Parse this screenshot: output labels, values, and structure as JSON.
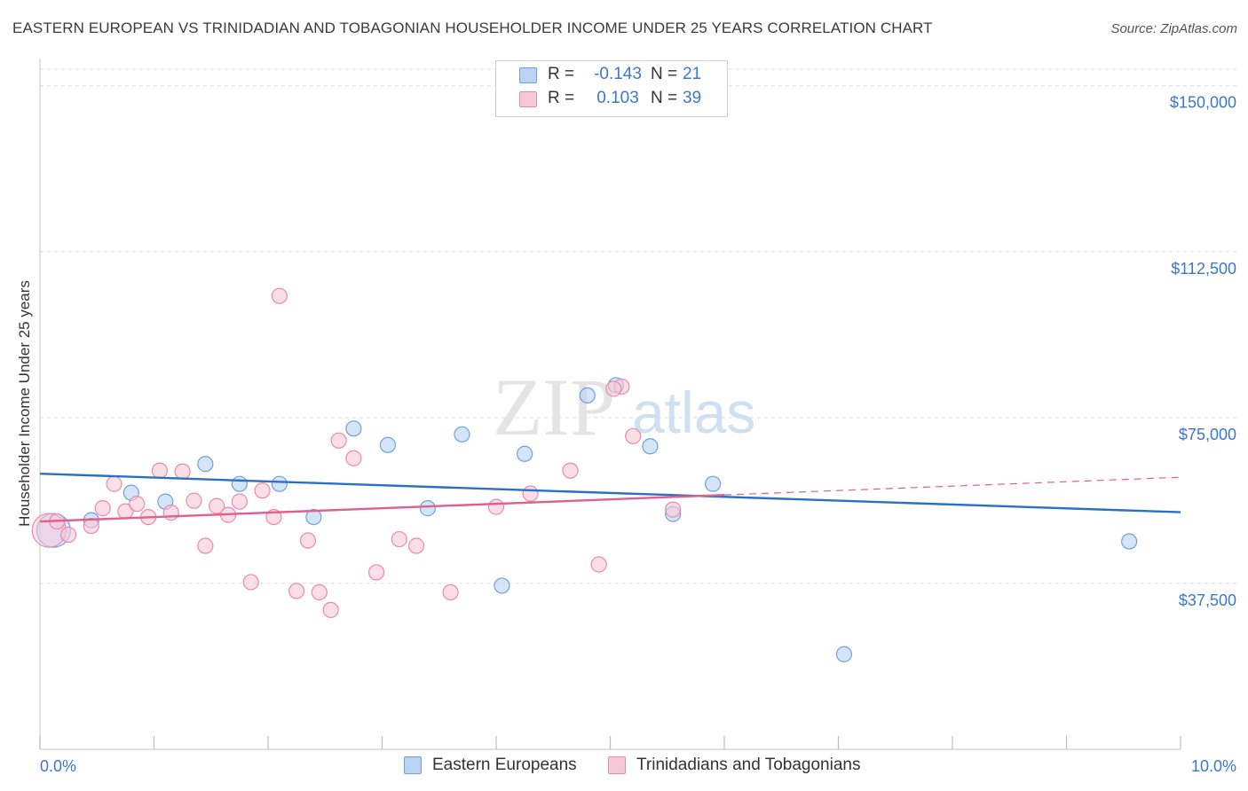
{
  "title": "EASTERN EUROPEAN VS TRINIDADIAN AND TOBAGONIAN HOUSEHOLDER INCOME UNDER 25 YEARS CORRELATION CHART",
  "source": "Source: ZipAtlas.com",
  "watermark": {
    "zip": "ZIP",
    "atlas": "atlas"
  },
  "colors": {
    "blue_fill": "#b9d3f5",
    "blue_stroke": "#6fa0db",
    "blue_line": "#2a6fcc",
    "pink_fill": "#f8c8d8",
    "pink_stroke": "#e98aa8",
    "pink_line": "#e0608c",
    "axis_text": "#3b78c8",
    "grid": "#dcdcdc"
  },
  "legend": {
    "rows": [
      {
        "r_label": "R =",
        "r_value": "-0.143",
        "n_label": "N =",
        "n_value": "21"
      },
      {
        "r_label": "R =",
        "r_value": "0.103",
        "n_label": "N =",
        "n_value": "39"
      }
    ]
  },
  "chart_data": {
    "type": "scatter",
    "title": "EASTERN EUROPEAN VS TRINIDADIAN AND TOBAGONIAN HOUSEHOLDER INCOME UNDER 25 YEARS CORRELATION CHART",
    "xlabel": "",
    "ylabel": "Householder Income Under 25 years",
    "xlim": [
      0,
      10
    ],
    "ylim": [
      0,
      153750
    ],
    "x_tick_labels": [
      {
        "value": 0,
        "label": "0.0%"
      },
      {
        "value": 10,
        "label": "10.0%"
      }
    ],
    "y_ticks": [
      {
        "value": 37500,
        "label": "$37,500"
      },
      {
        "value": 75000,
        "label": "$75,000"
      },
      {
        "value": 112500,
        "label": "$112,500"
      },
      {
        "value": 150000,
        "label": "$150,000"
      }
    ],
    "grid": true,
    "series": [
      {
        "name": "Eastern Europeans",
        "color": "blue",
        "r": -0.143,
        "n": 21,
        "trend": {
          "x0": 0,
          "y0": 62300,
          "x1": 10,
          "y1": 53600,
          "solid_to": 10
        },
        "points": [
          {
            "x": 0.12,
            "y": 49500,
            "big": true
          },
          {
            "x": 0.45,
            "y": 51800
          },
          {
            "x": 0.8,
            "y": 58000
          },
          {
            "x": 1.1,
            "y": 56000
          },
          {
            "x": 1.45,
            "y": 64500
          },
          {
            "x": 1.75,
            "y": 60000
          },
          {
            "x": 2.1,
            "y": 60000
          },
          {
            "x": 2.4,
            "y": 52500
          },
          {
            "x": 2.75,
            "y": 72500
          },
          {
            "x": 3.05,
            "y": 68800
          },
          {
            "x": 3.4,
            "y": 54500
          },
          {
            "x": 3.7,
            "y": 71200
          },
          {
            "x": 4.05,
            "y": 37000
          },
          {
            "x": 4.25,
            "y": 66800
          },
          {
            "x": 4.8,
            "y": 80000
          },
          {
            "x": 5.05,
            "y": 82300
          },
          {
            "x": 5.35,
            "y": 68500
          },
          {
            "x": 5.55,
            "y": 53200
          },
          {
            "x": 5.9,
            "y": 60000
          },
          {
            "x": 7.05,
            "y": 21500
          },
          {
            "x": 9.55,
            "y": 47000
          }
        ]
      },
      {
        "name": "Trinidadians and Tobagonians",
        "color": "pink",
        "r": 0.103,
        "n": 39,
        "trend": {
          "x0": 0,
          "y0": 51500,
          "x1": 10,
          "y1": 61500,
          "solid_to": 6.0
        },
        "points": [
          {
            "x": 0.08,
            "y": 49500,
            "big": true
          },
          {
            "x": 0.15,
            "y": 51500
          },
          {
            "x": 0.25,
            "y": 48500
          },
          {
            "x": 0.45,
            "y": 50500
          },
          {
            "x": 0.55,
            "y": 54500
          },
          {
            "x": 0.65,
            "y": 60000
          },
          {
            "x": 0.75,
            "y": 53800
          },
          {
            "x": 0.85,
            "y": 55500
          },
          {
            "x": 0.95,
            "y": 52500
          },
          {
            "x": 1.05,
            "y": 63000
          },
          {
            "x": 1.15,
            "y": 53500
          },
          {
            "x": 1.25,
            "y": 62800
          },
          {
            "x": 1.35,
            "y": 56200
          },
          {
            "x": 1.45,
            "y": 46000
          },
          {
            "x": 1.55,
            "y": 55000
          },
          {
            "x": 1.65,
            "y": 53000
          },
          {
            "x": 1.75,
            "y": 56000
          },
          {
            "x": 1.85,
            "y": 37800
          },
          {
            "x": 1.95,
            "y": 58500
          },
          {
            "x": 2.05,
            "y": 52500
          },
          {
            "x": 2.1,
            "y": 102500
          },
          {
            "x": 2.25,
            "y": 35800
          },
          {
            "x": 2.35,
            "y": 47200
          },
          {
            "x": 2.45,
            "y": 35500
          },
          {
            "x": 2.55,
            "y": 31500
          },
          {
            "x": 2.62,
            "y": 69800
          },
          {
            "x": 2.75,
            "y": 65800
          },
          {
            "x": 2.95,
            "y": 40000
          },
          {
            "x": 3.15,
            "y": 47500
          },
          {
            "x": 3.3,
            "y": 46000
          },
          {
            "x": 3.6,
            "y": 35500
          },
          {
            "x": 4.0,
            "y": 54800
          },
          {
            "x": 4.3,
            "y": 57800
          },
          {
            "x": 4.65,
            "y": 63000
          },
          {
            "x": 4.9,
            "y": 41800
          },
          {
            "x": 5.1,
            "y": 82000
          },
          {
            "x": 5.2,
            "y": 70800
          },
          {
            "x": 5.55,
            "y": 54200
          },
          {
            "x": 5.03,
            "y": 81500
          }
        ]
      }
    ]
  }
}
